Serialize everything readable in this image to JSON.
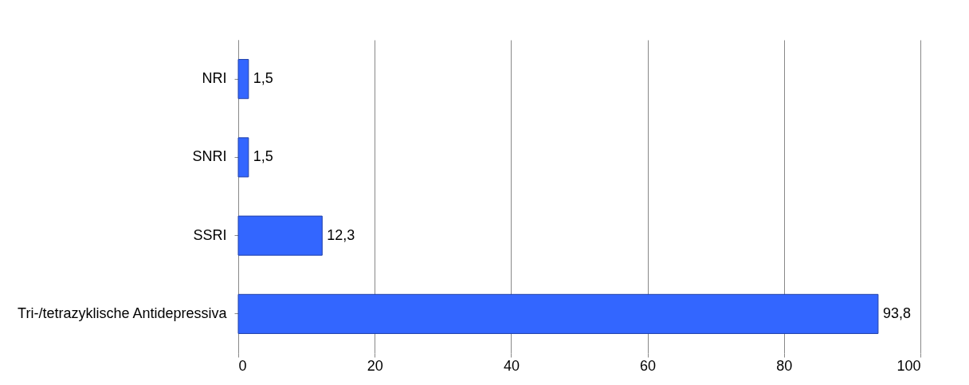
{
  "chart_data": {
    "type": "bar",
    "orientation": "horizontal",
    "categories": [
      "NRI",
      "SNRI",
      "SSRI",
      "Tri-/tetrazyklische Antidepressiva"
    ],
    "values": [
      1.5,
      1.5,
      12.3,
      93.8
    ],
    "value_labels": [
      "1,5",
      "1,5",
      "12,3",
      "93,8"
    ],
    "color": "#3366ff",
    "xlim": [
      0,
      100
    ],
    "xticks": [
      0,
      20,
      40,
      60,
      80,
      100
    ],
    "grid": "x"
  }
}
